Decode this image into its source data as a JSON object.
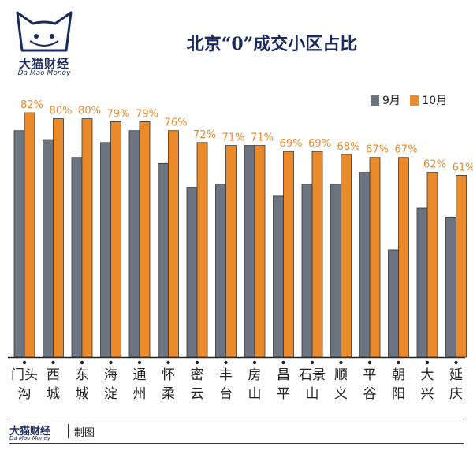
{
  "brand": {
    "name": "大猫财经",
    "name_en": "Da Mao Money",
    "credit": "制图"
  },
  "colors": {
    "sep": "#6b7480",
    "oct": "#ea8a2b",
    "label": "#ea8a2b",
    "navy": "#1a2a5a"
  },
  "chart_data": {
    "type": "bar",
    "title": "北京“0”成交小区占比",
    "categories": [
      "门头沟",
      "西城",
      "东城",
      "海淀",
      "通州",
      "怀柔",
      "密云",
      "丰台",
      "房山",
      "昌平",
      "石景山",
      "顺义",
      "平谷",
      "朝阳",
      "大兴",
      "延庆"
    ],
    "series": [
      {
        "name": "9月",
        "values": [
          76,
          73,
          67,
          72,
          76,
          65,
          57,
          58,
          71,
          54,
          58,
          58,
          62,
          36,
          50,
          47
        ]
      },
      {
        "name": "10月",
        "values": [
          82,
          80,
          80,
          79,
          79,
          76,
          72,
          71,
          71,
          69,
          69,
          68,
          67,
          67,
          62,
          61
        ]
      }
    ],
    "data_labels": [
      "82%",
      "80%",
      "80%",
      "79%",
      "79%",
      "76%",
      "72%",
      "71%",
      "71%",
      "69%",
      "69%",
      "68%",
      "67%",
      "67%",
      "62%",
      "61%"
    ],
    "ylim": [
      0,
      100
    ],
    "grid": false,
    "legend": "top-right"
  }
}
